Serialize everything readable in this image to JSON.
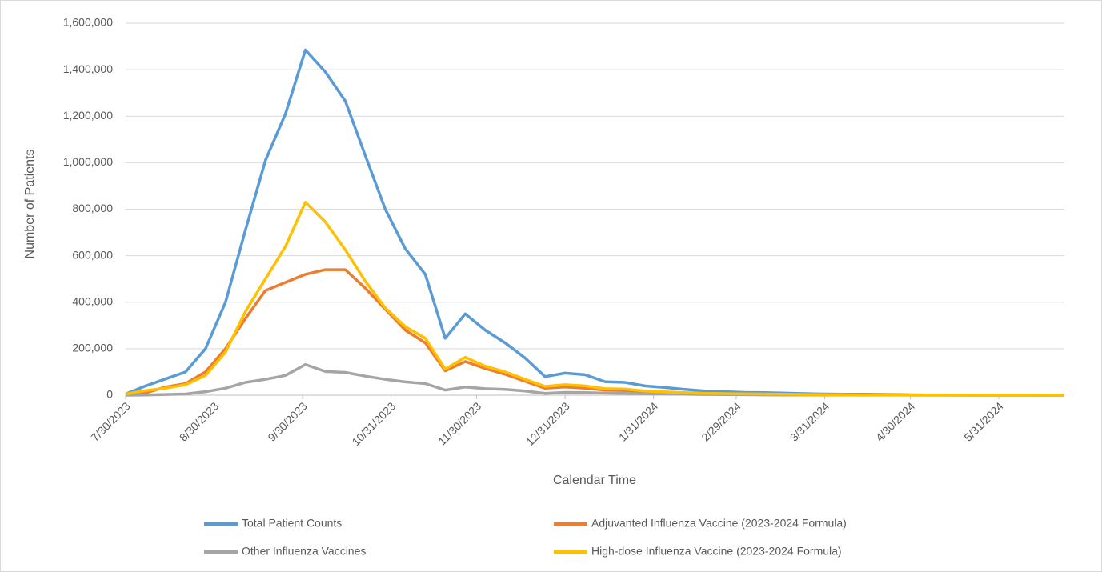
{
  "chart_data": {
    "type": "line",
    "x_label": "Calendar Time",
    "y_label": "Number of Patients",
    "x": [
      "2023-07-30",
      "2023-08-06",
      "2023-08-13",
      "2023-08-20",
      "2023-08-27",
      "2023-09-03",
      "2023-09-10",
      "2023-09-17",
      "2023-09-24",
      "2023-10-01",
      "2023-10-08",
      "2023-10-15",
      "2023-10-22",
      "2023-10-29",
      "2023-11-05",
      "2023-11-12",
      "2023-11-19",
      "2023-11-26",
      "2023-12-03",
      "2023-12-10",
      "2023-12-17",
      "2023-12-24",
      "2023-12-31",
      "2024-01-07",
      "2024-01-14",
      "2024-01-21",
      "2024-01-28",
      "2024-02-04",
      "2024-02-11",
      "2024-02-18",
      "2024-02-25",
      "2024-03-03",
      "2024-03-10",
      "2024-03-17",
      "2024-03-24",
      "2024-03-31",
      "2024-04-07",
      "2024-04-14",
      "2024-04-21",
      "2024-04-28",
      "2024-05-05",
      "2024-05-12",
      "2024-05-19",
      "2024-05-26",
      "2024-06-02",
      "2024-06-09",
      "2024-06-16",
      "2024-06-23"
    ],
    "series": [
      {
        "name": "Total Patient Counts",
        "color": "#5b9bd5",
        "values": [
          5000,
          40000,
          70000,
          100000,
          200000,
          400000,
          710000,
          1010000,
          1210000,
          1485000,
          1390000,
          1265000,
          1030000,
          800000,
          630000,
          520000,
          245000,
          350000,
          280000,
          225000,
          160000,
          80000,
          95000,
          88000,
          58000,
          55000,
          40000,
          33000,
          25000,
          18000,
          15000,
          12000,
          11000,
          9000,
          7000,
          5000,
          4000,
          4000,
          3000,
          2000,
          1000,
          1000,
          1000,
          500,
          500,
          500,
          500,
          500
        ]
      },
      {
        "name": "Adjuvanted Influenza Vaccine (2023-2024 Formula)",
        "color": "#ed7d31",
        "values": [
          2000,
          10000,
          35000,
          50000,
          100000,
          200000,
          330000,
          450000,
          485000,
          520000,
          540000,
          540000,
          460000,
          370000,
          280000,
          225000,
          105000,
          145000,
          115000,
          90000,
          60000,
          30000,
          35000,
          30000,
          22000,
          20000,
          15000,
          12000,
          9000,
          7000,
          6000,
          5000,
          4000,
          3000,
          2500,
          2000,
          1500,
          1200,
          1000,
          800,
          500,
          400,
          300,
          200,
          200,
          200,
          100,
          100
        ]
      },
      {
        "name": "Other Influenza Vaccines",
        "color": "#a5a5a5",
        "values": [
          0,
          1000,
          3000,
          5000,
          15000,
          30000,
          55000,
          68000,
          85000,
          132000,
          102000,
          98000,
          82000,
          68000,
          57000,
          50000,
          22000,
          35000,
          28000,
          25000,
          18000,
          8000,
          12000,
          11000,
          9000,
          8000,
          6000,
          5000,
          4000,
          3000,
          2500,
          2000,
          1500,
          1200,
          1000,
          800,
          600,
          500,
          400,
          300,
          200,
          200,
          100,
          100,
          100,
          100,
          100,
          100
        ]
      },
      {
        "name": "High-dose Influenza Vaccine (2023-2024 Formula)",
        "color": "#ffc000",
        "values": [
          5000,
          20000,
          30000,
          45000,
          85000,
          185000,
          360000,
          500000,
          640000,
          830000,
          745000,
          625000,
          490000,
          375000,
          295000,
          245000,
          112000,
          163000,
          125000,
          100000,
          68000,
          38000,
          45000,
          40000,
          28000,
          26000,
          18000,
          14000,
          11000,
          8000,
          7000,
          6000,
          5000,
          4000,
          3000,
          2500,
          2000,
          1500,
          1200,
          1000,
          800,
          500,
          400,
          300,
          200,
          200,
          200,
          100
        ]
      }
    ],
    "xlim": [
      "2023-07-30",
      "2024-06-23"
    ],
    "xticks": [
      {
        "value": "2023-07-30",
        "label": "7/30/2023"
      },
      {
        "value": "2023-08-30",
        "label": "8/30/2023"
      },
      {
        "value": "2023-09-30",
        "label": "9/30/2023"
      },
      {
        "value": "2023-10-31",
        "label": "10/31/2023"
      },
      {
        "value": "2023-11-30",
        "label": "11/30/2023"
      },
      {
        "value": "2023-12-31",
        "label": "12/31/2023"
      },
      {
        "value": "2024-01-31",
        "label": "1/31/2024"
      },
      {
        "value": "2024-02-29",
        "label": "2/29/2024"
      },
      {
        "value": "2024-03-31",
        "label": "3/31/2024"
      },
      {
        "value": "2024-04-30",
        "label": "4/30/2024"
      },
      {
        "value": "2024-05-31",
        "label": "5/31/2024"
      }
    ],
    "ylim": [
      0,
      1600000
    ],
    "yticks": [
      0,
      {
        "value": 200000,
        "label": "200,000"
      },
      {
        "value": 400000,
        "label": "400,000"
      },
      {
        "value": 600000,
        "label": "600,000"
      },
      {
        "value": 800000,
        "label": "800,000"
      },
      {
        "value": 1000000,
        "label": "1,000,000"
      },
      {
        "value": 1200000,
        "label": "1,200,000"
      },
      {
        "value": 1400000,
        "label": "1,400,000"
      },
      {
        "value": 1600000,
        "label": "1,600,000"
      }
    ],
    "grid": true,
    "legend": "bottom"
  }
}
